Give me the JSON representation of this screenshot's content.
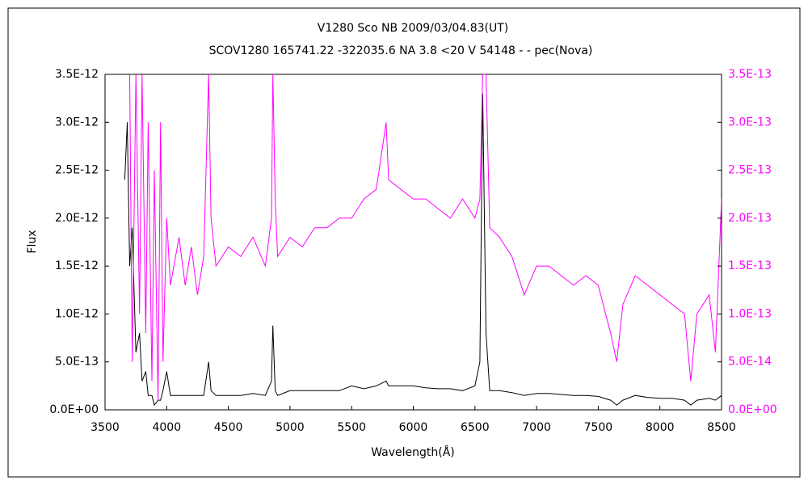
{
  "chart_data": {
    "type": "line",
    "title": "V1280 Sco    NB    2009/03/04.83(UT)",
    "subtitle": "SCOV1280 165741.22 -322035.6 NA 3.8 <20 V 54148 - - pec(Nova)",
    "y_label": "Flux",
    "x_label": "Wavelength(Å)",
    "x": [
      3660,
      3680,
      3700,
      3720,
      3750,
      3780,
      3800,
      3830,
      3850,
      3880,
      3900,
      3930,
      3950,
      3970,
      4000,
      4030,
      4100,
      4150,
      4200,
      4250,
      4300,
      4340,
      4360,
      4400,
      4500,
      4600,
      4700,
      4800,
      4850,
      4861,
      4880,
      4900,
      5000,
      5100,
      5200,
      5300,
      5400,
      5500,
      5600,
      5700,
      5780,
      5800,
      5900,
      6000,
      6100,
      6200,
      6300,
      6400,
      6500,
      6540,
      6563,
      6590,
      6620,
      6700,
      6800,
      6900,
      7000,
      7100,
      7200,
      7300,
      7400,
      7500,
      7600,
      7650,
      7700,
      7800,
      7900,
      8000,
      8100,
      8200,
      8250,
      8300,
      8400,
      8450,
      8500
    ],
    "series": [
      {
        "color": "#000000",
        "axis": "y",
        "values": [
          2.4e-12,
          3e-12,
          1.5e-12,
          1.9e-12,
          6e-13,
          8e-13,
          3e-13,
          4e-13,
          1.5e-13,
          1.5e-13,
          5e-14,
          1e-13,
          1e-13,
          2e-13,
          4e-13,
          1.5e-13,
          1.5e-13,
          1.5e-13,
          1.5e-13,
          1.5e-13,
          1.5e-13,
          5e-13,
          2e-13,
          1.5e-13,
          1.5e-13,
          1.5e-13,
          1.7e-13,
          1.5e-13,
          3e-13,
          8.8e-13,
          2e-13,
          1.5e-13,
          2e-13,
          2e-13,
          2e-13,
          2e-13,
          2e-13,
          2.5e-13,
          2.2e-13,
          2.5e-13,
          3e-13,
          2.5e-13,
          2.5e-13,
          2.5e-13,
          2.3e-13,
          2.2e-13,
          2.2e-13,
          2e-13,
          2.5e-13,
          5e-13,
          3.3e-12,
          8e-13,
          2e-13,
          2e-13,
          1.8e-13,
          1.5e-13,
          1.7e-13,
          1.7e-13,
          1.6e-13,
          1.5e-13,
          1.5e-13,
          1.4e-13,
          1e-13,
          5e-14,
          1e-13,
          1.5e-13,
          1.3e-13,
          1.2e-13,
          1.2e-13,
          1e-13,
          5e-14,
          1e-13,
          1.2e-13,
          1e-13,
          1.5e-13
        ]
      },
      {
        "color": "#ff00ff",
        "axis": "y2",
        "values": [
          null,
          null,
          3.5e-13,
          5e-14,
          3.5e-13,
          1e-13,
          3.5e-13,
          8e-14,
          3e-13,
          3e-14,
          2.5e-13,
          1e-14,
          3e-13,
          5e-14,
          2e-13,
          1.3e-13,
          1.8e-13,
          1.3e-13,
          1.7e-13,
          1.2e-13,
          1.6e-13,
          3.5e-13,
          2e-13,
          1.5e-13,
          1.7e-13,
          1.6e-13,
          1.8e-13,
          1.5e-13,
          2e-13,
          3.5e-13,
          2.2e-13,
          1.6e-13,
          1.8e-13,
          1.7e-13,
          1.9e-13,
          1.9e-13,
          2e-13,
          2e-13,
          2.2e-13,
          2.3e-13,
          3e-13,
          2.4e-13,
          2.3e-13,
          2.2e-13,
          2.2e-13,
          2.1e-13,
          2e-13,
          2.2e-13,
          2e-13,
          2.2e-13,
          3.5e-13,
          3.5e-13,
          1.9e-13,
          1.8e-13,
          1.6e-13,
          1.2e-13,
          1.5e-13,
          1.5e-13,
          1.4e-13,
          1.3e-13,
          1.4e-13,
          1.3e-13,
          8e-14,
          5e-14,
          1.1e-13,
          1.4e-13,
          1.3e-13,
          1.2e-13,
          1.1e-13,
          1e-13,
          3e-14,
          1e-13,
          1.2e-13,
          6e-14,
          2.2e-13
        ]
      }
    ],
    "xlim": [
      3500,
      8500
    ],
    "xticks": [
      3500,
      4000,
      4500,
      5000,
      5500,
      6000,
      6500,
      7000,
      7500,
      8000,
      8500
    ],
    "ylim": [
      0,
      3.5e-12
    ],
    "yticks": [
      {
        "value": 0,
        "label": "0.0E+00"
      },
      {
        "value": 5e-13,
        "label": "5.0E-13"
      },
      {
        "value": 1e-12,
        "label": "1.0E-12"
      },
      {
        "value": 1.5e-12,
        "label": "1.5E-12"
      },
      {
        "value": 2e-12,
        "label": "2.0E-12"
      },
      {
        "value": 2.5e-12,
        "label": "2.5E-12"
      },
      {
        "value": 3e-12,
        "label": "3.0E-12"
      },
      {
        "value": 3.5e-12,
        "label": "3.5E-12"
      }
    ],
    "y2lim": [
      0,
      3.5e-13
    ],
    "y2ticks": [
      {
        "value": 0,
        "label": "0.0E+00"
      },
      {
        "value": 5e-14,
        "label": "5.0E-14"
      },
      {
        "value": 1e-13,
        "label": "1.0E-13"
      },
      {
        "value": 1.5e-13,
        "label": "1.5E-13"
      },
      {
        "value": 2e-13,
        "label": "2.0E-13"
      },
      {
        "value": 2.5e-13,
        "label": "2.5E-13"
      },
      {
        "value": 3e-13,
        "label": "3.0E-13"
      },
      {
        "value": 3.5e-13,
        "label": "3.5E-13"
      }
    ],
    "y2_color": "#ff00ff",
    "grid": false
  }
}
